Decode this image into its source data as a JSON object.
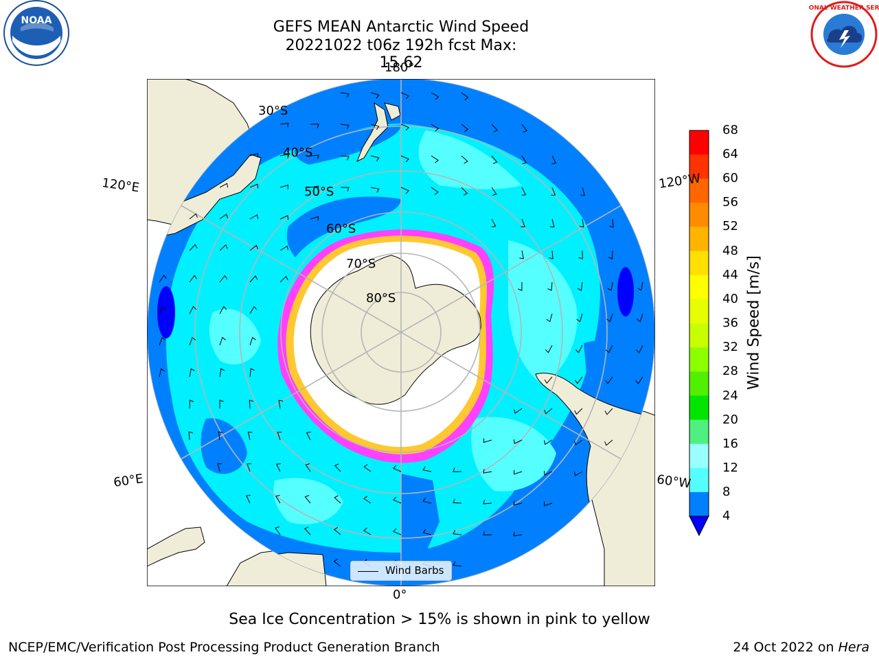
{
  "title": {
    "line1": "GEFS MEAN Antarctic Wind Speed",
    "line2": "20221022 t06z 192h fcst   Max: 15.62"
  },
  "logos": {
    "left": "noaa-logo",
    "left_text": "NOAA",
    "right": "nws-logo",
    "right_text": "NATIONAL WEATHER SERVICE"
  },
  "map": {
    "projection": "south-polar-stereographic",
    "longitude_labels": {
      "top": "180°",
      "bottom": "0°",
      "upper_left": "120°E",
      "upper_right": "120°W",
      "lower_left": "60°E",
      "lower_right": "60°W"
    },
    "latitude_labels": [
      "30°S",
      "40°S",
      "50°S",
      "60°S",
      "70°S",
      "80°S"
    ]
  },
  "colorbar": {
    "title": "Wind Speed [m/s]",
    "ticks": [
      "68",
      "64",
      "60",
      "56",
      "52",
      "48",
      "44",
      "40",
      "36",
      "32",
      "28",
      "24",
      "20",
      "16",
      "12",
      "8",
      "4"
    ],
    "colors": [
      "#ff0000",
      "#ff3300",
      "#ff6600",
      "#ff8c00",
      "#ffb400",
      "#ffe000",
      "#ffff00",
      "#e6ff00",
      "#c8ff00",
      "#8cff00",
      "#50f000",
      "#00e600",
      "#50f080",
      "#9affff",
      "#55ffff",
      "#00f0ff",
      "#0080ff"
    ],
    "extend_color": "#0000ff"
  },
  "legend": {
    "label": "Wind Barbs"
  },
  "footnote": "Sea Ice Concentration > 15% is shown in pink to yellow",
  "credit": "NCEP/EMC/Verification Post Processing Product Generation Branch",
  "date": {
    "text": "24 Oct 2022 on ",
    "machine": "Hera"
  },
  "colors": {
    "land": "#efedd8",
    "calm": "#0080ff",
    "moderate": "#00f0ff",
    "strong": "#55ffff",
    "ice_edge": "#ff40ff",
    "ice_yellow": "#ffc830",
    "very_calm": "#0000ff"
  }
}
